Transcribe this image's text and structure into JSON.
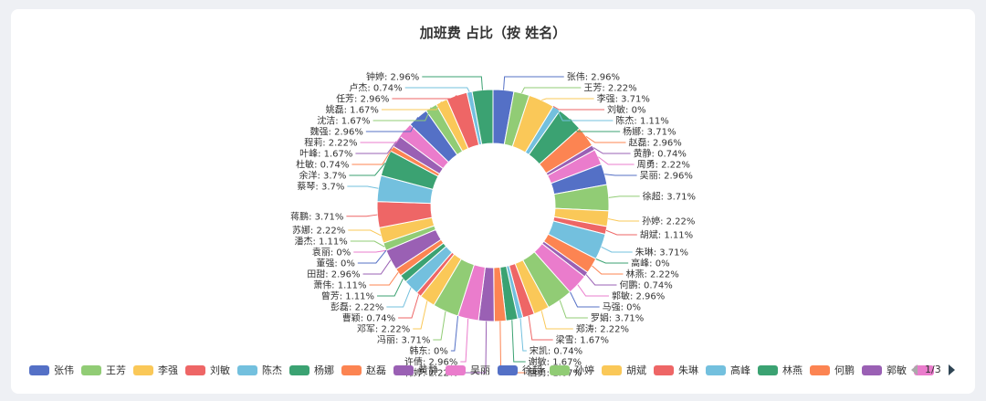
{
  "colors": [
    "#5470c6",
    "#91cc75",
    "#fac858",
    "#ee6666",
    "#73c0de",
    "#3ba272",
    "#fc8452",
    "#9a60b4",
    "#ea7ccc"
  ],
  "legend_pager": "1/3",
  "chart_data": {
    "type": "pie",
    "variant": "donut",
    "title": "加班费 占比（按 姓名）",
    "legend_position": "bottom",
    "slices": [
      {
        "name": "张伟",
        "value": 2.96,
        "label": "张伟: 2.96%"
      },
      {
        "name": "王芳",
        "value": 2.22,
        "label": "王芳: 2.22%"
      },
      {
        "name": "李强",
        "value": 3.71,
        "label": "李强: 3.71%"
      },
      {
        "name": "刘敏",
        "value": 0,
        "label": "刘敏: 0%"
      },
      {
        "name": "陈杰",
        "value": 1.11,
        "label": "陈杰: 1.11%"
      },
      {
        "name": "杨娜",
        "value": 3.71,
        "label": "杨娜: 3.71%"
      },
      {
        "name": "赵磊",
        "value": 2.96,
        "label": "赵磊: 2.96%"
      },
      {
        "name": "黄静",
        "value": 0.74,
        "label": "黄静: 0.74%"
      },
      {
        "name": "周勇",
        "value": 2.22,
        "label": "周勇: 2.22%"
      },
      {
        "name": "吴丽",
        "value": 2.96,
        "label": "吴丽: 2.96%"
      },
      {
        "name": "徐超",
        "value": 3.71,
        "label": "徐超: 3.71%"
      },
      {
        "name": "孙婷",
        "value": 2.22,
        "label": "孙婷: 2.22%"
      },
      {
        "name": "胡斌",
        "value": 1.11,
        "label": "胡斌: 1.11%"
      },
      {
        "name": "朱琳",
        "value": 3.71,
        "label": "朱琳: 3.71%"
      },
      {
        "name": "高峰",
        "value": 0,
        "label": "高峰: 0%"
      },
      {
        "name": "林燕",
        "value": 2.22,
        "label": "林燕: 2.22%"
      },
      {
        "name": "何鹏",
        "value": 0.74,
        "label": "何鹏: 0.74%"
      },
      {
        "name": "郭敏",
        "value": 2.96,
        "label": "郭敏: 2.96%"
      },
      {
        "name": "马强",
        "value": 0,
        "label": "马强: 0%"
      },
      {
        "name": "罗娟",
        "value": 3.71,
        "label": "罗娟: 3.71%"
      },
      {
        "name": "郑涛",
        "value": 2.22,
        "label": "郑涛: 2.22%"
      },
      {
        "name": "梁雪",
        "value": 1.67,
        "label": "梁雪: 1.67%"
      },
      {
        "name": "宋凯",
        "value": 0.74,
        "label": "宋凯: 0.74%"
      },
      {
        "name": "谢敏",
        "value": 1.67,
        "label": "谢敏: 1.67%"
      },
      {
        "name": "唐勇",
        "value": 1.67,
        "label": "唐勇: 1.67%"
      },
      {
        "name": "韩婷",
        "value": 2.22,
        "label": "韩婷: 2.22%"
      },
      {
        "name": "许倩",
        "value": 2.96,
        "label": "许倩: 2.96%"
      },
      {
        "name": "韩东",
        "value": 0,
        "label": "韩东: 0%"
      },
      {
        "name": "冯丽",
        "value": 3.71,
        "label": "冯丽: 3.71%"
      },
      {
        "name": "邓军",
        "value": 2.22,
        "label": "邓军: 2.22%"
      },
      {
        "name": "曹颖",
        "value": 0.74,
        "label": "曹颖: 0.74%"
      },
      {
        "name": "彭磊",
        "value": 2.22,
        "label": "彭磊: 2.22%"
      },
      {
        "name": "曾芳",
        "value": 1.11,
        "label": "曾芳: 1.11%"
      },
      {
        "name": "萧伟",
        "value": 1.11,
        "label": "萧伟: 1.11%"
      },
      {
        "name": "田甜",
        "value": 2.96,
        "label": "田甜: 2.96%"
      },
      {
        "name": "袁丽",
        "value": 0,
        "label": "袁丽: 0%"
      },
      {
        "name": "董强",
        "value": 0,
        "label": "董强: 0%"
      },
      {
        "name": "潘杰",
        "value": 1.11,
        "label": "潘杰: 1.11%"
      },
      {
        "name": "苏娜",
        "value": 2.22,
        "label": "苏娜: 2.22%"
      },
      {
        "name": "蒋鹏",
        "value": 3.71,
        "label": "蒋鹏: 3.71%"
      },
      {
        "name": "蔡琴",
        "value": 3.7,
        "label": "蔡琴: 3.7%"
      },
      {
        "name": "余洋",
        "value": 3.7,
        "label": "余洋: 3.7%"
      },
      {
        "name": "杜敏",
        "value": 0.74,
        "label": "杜敏: 0.74%"
      },
      {
        "name": "叶峰",
        "value": 1.67,
        "label": "叶峰: 1.67%"
      },
      {
        "name": "程莉",
        "value": 2.22,
        "label": "程莉: 2.22%"
      },
      {
        "name": "魏强",
        "value": 2.96,
        "label": "魏强: 2.96%"
      },
      {
        "name": "沈洁",
        "value": 1.67,
        "label": "沈洁: 1.67%"
      },
      {
        "name": "姚磊",
        "value": 1.67,
        "label": "姚磊: 1.67%"
      },
      {
        "name": "任芳",
        "value": 2.96,
        "label": "任芳: 2.96%"
      },
      {
        "name": "卢杰",
        "value": 0.74,
        "label": "卢杰: 0.74%"
      },
      {
        "name": "钟婷",
        "value": 2.96,
        "label": "钟婷: 2.96%"
      }
    ],
    "legend_visible": [
      "张伟",
      "王芳",
      "李强",
      "刘敏",
      "陈杰",
      "杨娜",
      "赵磊",
      "黄静",
      "吴丽",
      "徐超",
      "孙婷",
      "胡斌",
      "朱琳",
      "高峰",
      "林燕",
      "何鹏",
      "郭敏"
    ]
  }
}
